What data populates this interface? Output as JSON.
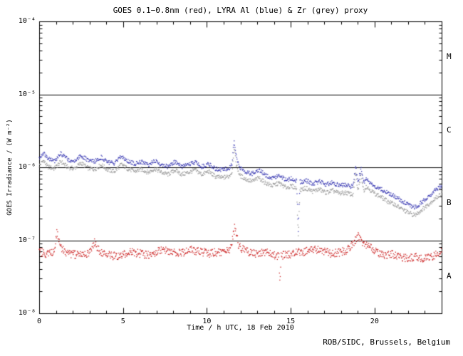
{
  "chart_data": {
    "type": "scatter",
    "title": "GOES 0.1−0.8nm (red), LYRA Al (blue) & Zr (grey) proxy",
    "xlabel": "Time / h UTC, 18 Feb 2010",
    "ylabel": "GOES Irradiance / (W m⁻²)",
    "credit": "ROB/SIDC, Brussels, Belgium",
    "xlim": [
      0,
      24
    ],
    "ylog": true,
    "ylim_exponents": [
      -8,
      -4
    ],
    "x_major_ticks": [
      0,
      5,
      10,
      15,
      20
    ],
    "x_minor_step": 1,
    "y_tick_labels": [
      {
        "exp": -8,
        "label": "10⁻⁸"
      },
      {
        "exp": -7,
        "label": "10⁻⁷"
      },
      {
        "exp": -6,
        "label": "10⁻⁶"
      },
      {
        "exp": -5,
        "label": "10⁻⁵"
      },
      {
        "exp": -4,
        "label": "10⁻⁴"
      }
    ],
    "hlines": [
      1e-05,
      1e-06,
      1e-07
    ],
    "flare_classes": [
      {
        "label": "M",
        "log_center": -4.5
      },
      {
        "label": "C",
        "log_center": -5.5
      },
      {
        "label": "B",
        "log_center": -6.5
      },
      {
        "label": "A",
        "log_center": -7.5
      }
    ],
    "series": [
      {
        "name": "LYRA Zr proxy",
        "color": "#9a9a9a",
        "jitter_decades": 0.03,
        "points": [
          [
            0,
            1.05e-06
          ],
          [
            0.25,
            1.25e-06
          ],
          [
            0.5,
            1.02e-06
          ],
          [
            0.9,
            9.6e-07
          ],
          [
            1.3,
            1.2e-06
          ],
          [
            1.7,
            1e-06
          ],
          [
            2.1,
            9.6e-07
          ],
          [
            2.5,
            1.15e-06
          ],
          [
            2.9,
            9.8e-07
          ],
          [
            3.3,
            9.4e-07
          ],
          [
            3.7,
            1.08e-06
          ],
          [
            4.1,
            9.2e-07
          ],
          [
            4.5,
            8.8e-07
          ],
          [
            4.9,
            1.1e-06
          ],
          [
            5.3,
            9.5e-07
          ],
          [
            5.7,
            8.8e-07
          ],
          [
            6.1,
            9.4e-07
          ],
          [
            6.5,
            8.5e-07
          ],
          [
            6.9,
            9.6e-07
          ],
          [
            7.3,
            8.5e-07
          ],
          [
            7.7,
            8e-07
          ],
          [
            8.1,
            9.2e-07
          ],
          [
            8.5,
            8e-07
          ],
          [
            8.9,
            8.5e-07
          ],
          [
            9.3,
            9.2e-07
          ],
          [
            9.7,
            8e-07
          ],
          [
            10.1,
            8.8e-07
          ],
          [
            10.5,
            7.5e-07
          ],
          [
            10.9,
            7.2e-07
          ],
          [
            11.3,
            7.5e-07
          ],
          [
            11.5,
            8.6e-07
          ],
          [
            11.62,
            1.9e-06
          ],
          [
            11.75,
            1.1e-06
          ],
          [
            11.95,
            7.8e-07
          ],
          [
            12.3,
            6.9e-07
          ],
          [
            12.7,
            6.4e-07
          ],
          [
            13.1,
            7.2e-07
          ],
          [
            13.5,
            6.1e-07
          ],
          [
            13.9,
            5.6e-07
          ],
          [
            14.3,
            6.1e-07
          ],
          [
            14.7,
            5.3e-07
          ],
          [
            15.1,
            5.5e-07
          ],
          [
            15.35,
            5.1e-07
          ],
          [
            15.45,
            1.1e-07
          ],
          [
            15.55,
            4.9e-07
          ],
          [
            15.9,
            5.2e-07
          ],
          [
            16.3,
            4.7e-07
          ],
          [
            16.7,
            5e-07
          ],
          [
            17.1,
            4.5e-07
          ],
          [
            17.5,
            4.8e-07
          ],
          [
            17.9,
            4.4e-07
          ],
          [
            18.3,
            4.5e-07
          ],
          [
            18.7,
            4.2e-07
          ],
          [
            18.88,
            8.2e-07
          ],
          [
            19.0,
            4.7e-07
          ],
          [
            19.2,
            7.8e-07
          ],
          [
            19.35,
            4.8e-07
          ],
          [
            19.5,
            5.5e-07
          ],
          [
            19.7,
            5e-07
          ],
          [
            20.0,
            4.4e-07
          ],
          [
            20.4,
            3.9e-07
          ],
          [
            20.8,
            3.4e-07
          ],
          [
            21.2,
            3.1e-07
          ],
          [
            21.6,
            2.7e-07
          ],
          [
            22.0,
            2.4e-07
          ],
          [
            22.4,
            2.2e-07
          ],
          [
            22.8,
            2.6e-07
          ],
          [
            23.2,
            3.1e-07
          ],
          [
            23.6,
            3.7e-07
          ],
          [
            24,
            4.4e-07
          ]
        ]
      },
      {
        "name": "LYRA Al proxy",
        "color": "#3c3cb4",
        "jitter_decades": 0.03,
        "points": [
          [
            0,
            1.35e-06
          ],
          [
            0.25,
            1.6e-06
          ],
          [
            0.5,
            1.3e-06
          ],
          [
            0.9,
            1.22e-06
          ],
          [
            1.3,
            1.55e-06
          ],
          [
            1.7,
            1.28e-06
          ],
          [
            2.1,
            1.22e-06
          ],
          [
            2.5,
            1.45e-06
          ],
          [
            2.9,
            1.25e-06
          ],
          [
            3.3,
            1.2e-06
          ],
          [
            3.7,
            1.38e-06
          ],
          [
            4.1,
            1.18e-06
          ],
          [
            4.5,
            1.12e-06
          ],
          [
            4.9,
            1.42e-06
          ],
          [
            5.3,
            1.22e-06
          ],
          [
            5.7,
            1.12e-06
          ],
          [
            6.1,
            1.2e-06
          ],
          [
            6.5,
            1.08e-06
          ],
          [
            6.9,
            1.22e-06
          ],
          [
            7.3,
            1.08e-06
          ],
          [
            7.7,
            1.02e-06
          ],
          [
            8.1,
            1.18e-06
          ],
          [
            8.5,
            1.02e-06
          ],
          [
            8.9,
            1.08e-06
          ],
          [
            9.3,
            1.18e-06
          ],
          [
            9.7,
            1.02e-06
          ],
          [
            10.1,
            1.12e-06
          ],
          [
            10.5,
            9.6e-07
          ],
          [
            10.9,
            9.2e-07
          ],
          [
            11.3,
            9.6e-07
          ],
          [
            11.5,
            1.1e-06
          ],
          [
            11.62,
            2.4e-06
          ],
          [
            11.75,
            1.4e-06
          ],
          [
            11.95,
            1e-06
          ],
          [
            12.3,
            8.8e-07
          ],
          [
            12.7,
            8.2e-07
          ],
          [
            13.1,
            9.2e-07
          ],
          [
            13.5,
            7.8e-07
          ],
          [
            13.9,
            7.2e-07
          ],
          [
            14.3,
            7.8e-07
          ],
          [
            14.7,
            6.8e-07
          ],
          [
            15.1,
            7e-07
          ],
          [
            15.35,
            6.5e-07
          ],
          [
            15.45,
            1.4e-07
          ],
          [
            15.55,
            6.3e-07
          ],
          [
            15.9,
            6.6e-07
          ],
          [
            16.3,
            6e-07
          ],
          [
            16.7,
            6.4e-07
          ],
          [
            17.1,
            5.8e-07
          ],
          [
            17.5,
            6.2e-07
          ],
          [
            17.9,
            5.6e-07
          ],
          [
            18.3,
            5.8e-07
          ],
          [
            18.7,
            5.4e-07
          ],
          [
            18.88,
            1.05e-06
          ],
          [
            19.0,
            6e-07
          ],
          [
            19.2,
            1e-06
          ],
          [
            19.35,
            6.2e-07
          ],
          [
            19.5,
            7e-07
          ],
          [
            19.7,
            6.4e-07
          ],
          [
            20.0,
            5.6e-07
          ],
          [
            20.4,
            5e-07
          ],
          [
            20.8,
            4.4e-07
          ],
          [
            21.2,
            4e-07
          ],
          [
            21.6,
            3.5e-07
          ],
          [
            22.0,
            3.1e-07
          ],
          [
            22.4,
            2.8e-07
          ],
          [
            22.8,
            3.3e-07
          ],
          [
            23.2,
            4e-07
          ],
          [
            23.6,
            4.8e-07
          ],
          [
            24,
            5.6e-07
          ]
        ]
      },
      {
        "name": "GOES 0.1-0.8nm",
        "color": "#cc2222",
        "jitter_decades": 0.055,
        "points": [
          [
            0,
            7e-08
          ],
          [
            0.5,
            6.4e-08
          ],
          [
            0.9,
            7e-08
          ],
          [
            1.05,
            1.35e-07
          ],
          [
            1.25,
            8.2e-08
          ],
          [
            1.7,
            6.6e-08
          ],
          [
            2.3,
            6.3e-08
          ],
          [
            2.9,
            6.6e-08
          ],
          [
            3.3,
            9.5e-08
          ],
          [
            3.6,
            7e-08
          ],
          [
            4.2,
            6.2e-08
          ],
          [
            4.8,
            6e-08
          ],
          [
            5.4,
            7e-08
          ],
          [
            6.0,
            6.6e-08
          ],
          [
            6.6,
            6.3e-08
          ],
          [
            7.2,
            7.4e-08
          ],
          [
            7.8,
            7e-08
          ],
          [
            8.4,
            6.6e-08
          ],
          [
            9.0,
            7.4e-08
          ],
          [
            9.6,
            7e-08
          ],
          [
            10.2,
            6.6e-08
          ],
          [
            10.8,
            7e-08
          ],
          [
            11.4,
            7.2e-08
          ],
          [
            11.68,
            1.6e-07
          ],
          [
            11.9,
            8.2e-08
          ],
          [
            12.4,
            7e-08
          ],
          [
            13.0,
            6.6e-08
          ],
          [
            13.6,
            7e-08
          ],
          [
            14.1,
            6.2e-08
          ],
          [
            14.3,
            6e-08
          ],
          [
            14.35,
            2.6e-08
          ],
          [
            14.42,
            6.2e-08
          ],
          [
            14.9,
            6.4e-08
          ],
          [
            15.4,
            6.8e-08
          ],
          [
            15.9,
            7e-08
          ],
          [
            16.4,
            7.6e-08
          ],
          [
            16.9,
            7.2e-08
          ],
          [
            17.4,
            6.6e-08
          ],
          [
            17.9,
            6.8e-08
          ],
          [
            18.4,
            7.4e-08
          ],
          [
            19.05,
            1.15e-07
          ],
          [
            19.3,
            8.6e-08
          ],
          [
            19.6,
            9e-08
          ],
          [
            20.0,
            7.2e-08
          ],
          [
            20.5,
            6.2e-08
          ],
          [
            21.0,
            6.6e-08
          ],
          [
            21.5,
            6e-08
          ],
          [
            22.0,
            5.6e-08
          ],
          [
            22.5,
            6e-08
          ],
          [
            23.0,
            5.6e-08
          ],
          [
            23.5,
            6e-08
          ],
          [
            24,
            7e-08
          ]
        ]
      }
    ]
  },
  "colors": {
    "background": "#ffffff",
    "frame": "#000000",
    "text": "#000000"
  }
}
